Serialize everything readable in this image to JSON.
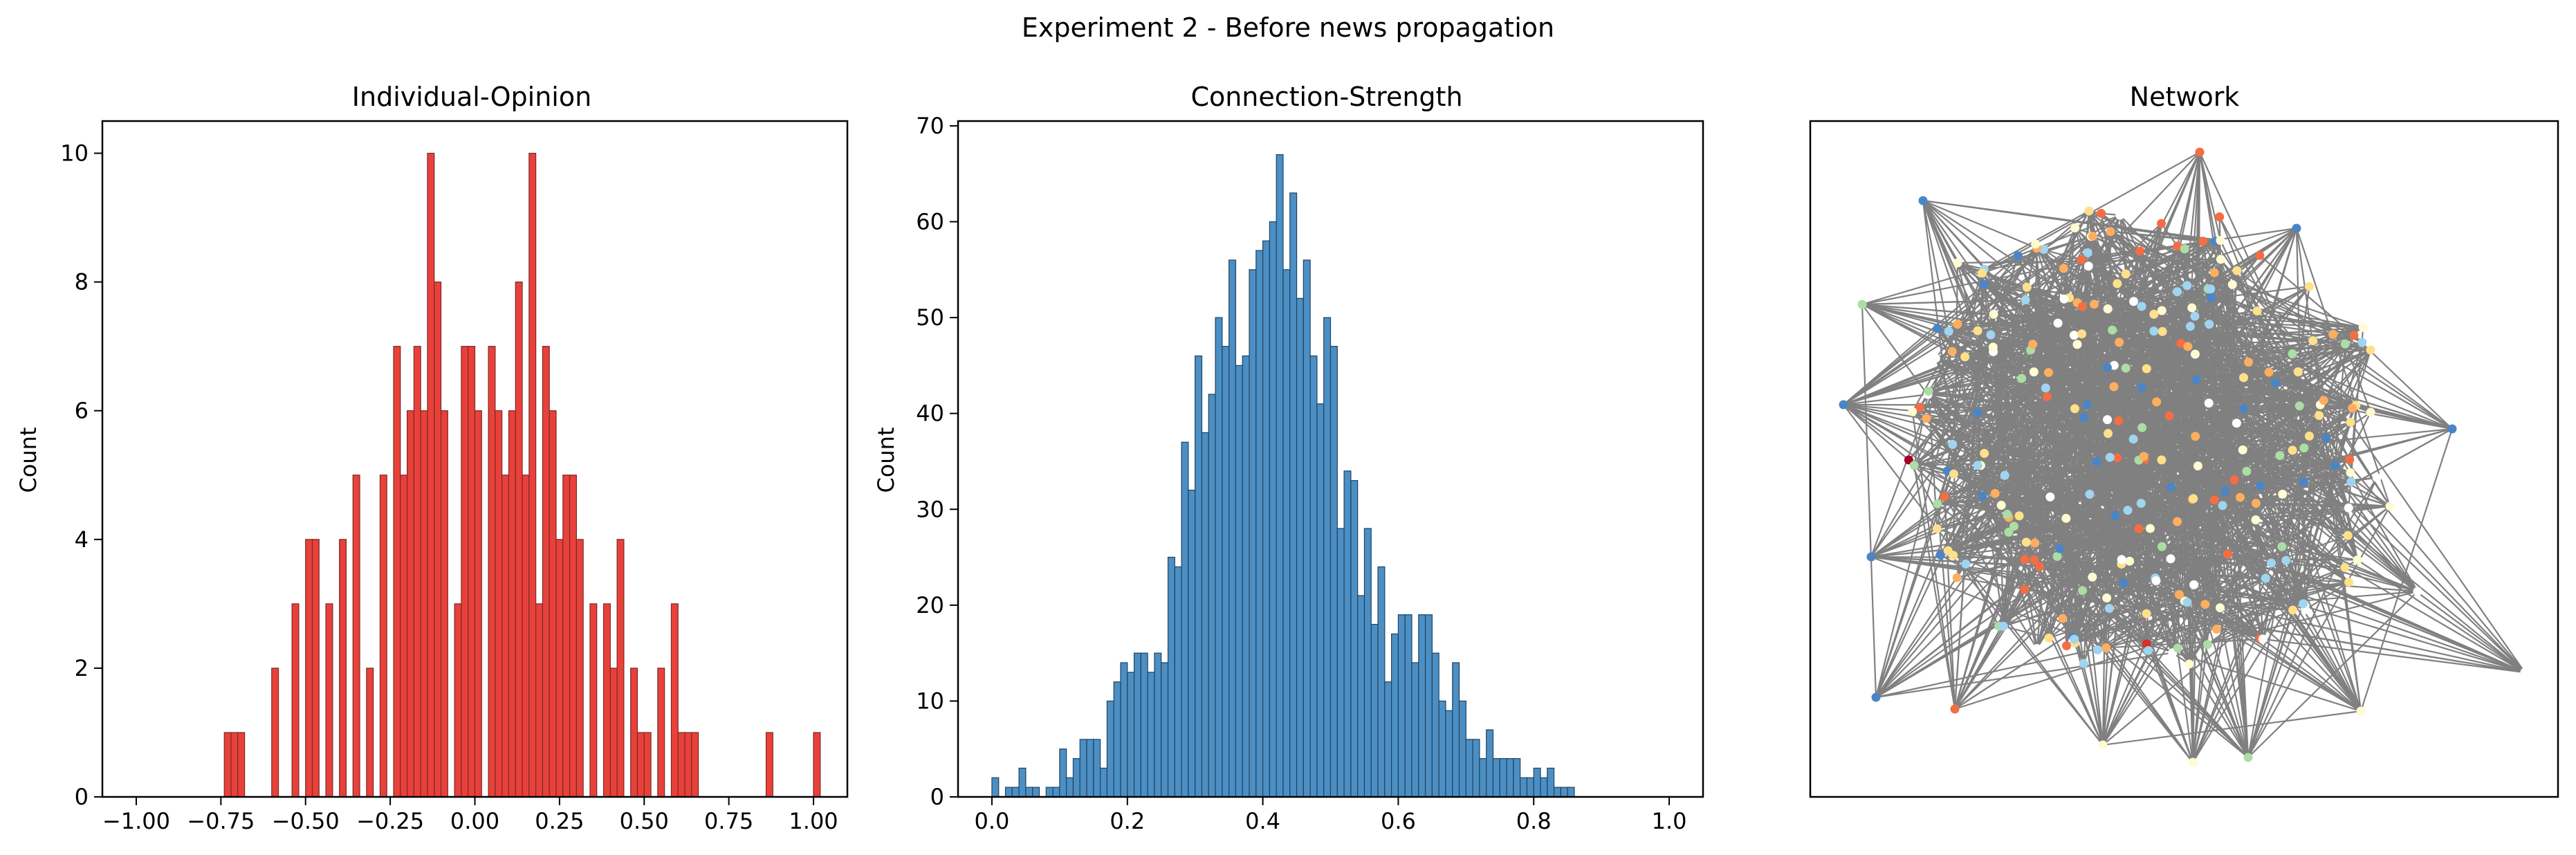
{
  "figure": {
    "suptitle": "Experiment 2 - Before news propagation"
  },
  "chart_data": [
    {
      "type": "bar",
      "title": "Individual-Opinion",
      "xlabel": "",
      "ylabel": "Count",
      "xlim": [
        -1.1,
        1.1
      ],
      "ylim": [
        0,
        10.5
      ],
      "xticks": [
        "−1.00",
        "−0.75",
        "−0.50",
        "−0.25",
        "0.00",
        "0.25",
        "0.50",
        "0.75",
        "1.00"
      ],
      "xtick_values": [
        -1.0,
        -0.75,
        -0.5,
        -0.25,
        0.0,
        0.25,
        0.5,
        0.75,
        1.0
      ],
      "yticks": [
        "0",
        "2",
        "4",
        "6",
        "8",
        "10"
      ],
      "ytick_values": [
        0,
        2,
        4,
        6,
        8,
        10
      ],
      "bin_start": -1.0,
      "bin_width": 0.02,
      "bar_color": "#e8413a",
      "edge_color": "#7a2a2a",
      "values": [
        0,
        0,
        0,
        0,
        0,
        0,
        0,
        0,
        0,
        0,
        0,
        0,
        0,
        1,
        1,
        1,
        0,
        0,
        0,
        0,
        2,
        0,
        0,
        3,
        0,
        4,
        4,
        0,
        3,
        0,
        4,
        0,
        5,
        0,
        2,
        0,
        5,
        0,
        7,
        5,
        6,
        7,
        6,
        10,
        8,
        6,
        0,
        3,
        7,
        7,
        6,
        0,
        7,
        6,
        5,
        6,
        8,
        5,
        10,
        3,
        7,
        6,
        4,
        5,
        5,
        4,
        0,
        3,
        0,
        3,
        2,
        4,
        0,
        2,
        1,
        1,
        0,
        2,
        0,
        3,
        1,
        1,
        1,
        0,
        0,
        0,
        0,
        0,
        0,
        0,
        0,
        0,
        0,
        1,
        0,
        0,
        0,
        0,
        0,
        0,
        1
      ],
      "grid": false
    },
    {
      "type": "bar",
      "title": "Connection-Strength",
      "xlabel": "",
      "ylabel": "Count",
      "xlim": [
        -0.05,
        1.05
      ],
      "ylim": [
        0,
        70.5
      ],
      "xticks": [
        "0.0",
        "0.2",
        "0.4",
        "0.6",
        "0.8",
        "1.0"
      ],
      "xtick_values": [
        0.0,
        0.2,
        0.4,
        0.6,
        0.8,
        1.0
      ],
      "yticks": [
        "0",
        "10",
        "20",
        "30",
        "40",
        "50",
        "60",
        "70"
      ],
      "ytick_values": [
        0,
        10,
        20,
        30,
        40,
        50,
        60,
        70
      ],
      "bin_start": 0.0,
      "bin_width": 0.01,
      "bar_color": "#4b8fc4",
      "edge_color": "#23425e",
      "values": [
        2,
        0,
        1,
        1,
        3,
        1,
        1,
        0,
        1,
        1,
        5,
        2,
        4,
        6,
        6,
        6,
        3,
        10,
        12,
        14,
        13,
        15,
        15,
        13,
        15,
        14,
        25,
        24,
        37,
        32,
        46,
        38,
        42,
        50,
        47,
        56,
        45,
        46,
        55,
        57,
        58,
        60,
        67,
        55,
        63,
        52,
        56,
        46,
        41,
        50,
        47,
        28,
        34,
        33,
        21,
        28,
        18,
        24,
        12,
        17,
        19,
        19,
        14,
        19,
        19,
        15,
        10,
        9,
        14,
        10,
        6,
        6,
        4,
        7,
        4,
        4,
        4,
        4,
        2,
        2,
        3,
        2,
        3,
        1,
        1,
        1
      ],
      "grid": false
    },
    {
      "type": "network",
      "title": "Network",
      "node_count": 260,
      "edge_color": "#808080",
      "node_colors": [
        "#fffbd2",
        "#fee08b",
        "#fdae61",
        "#abdda4",
        "#9fd5f0",
        "#4a86c5",
        "#f46d43",
        "#d73027",
        "#a50026",
        "#66c2a5",
        "#ffffff"
      ]
    }
  ]
}
